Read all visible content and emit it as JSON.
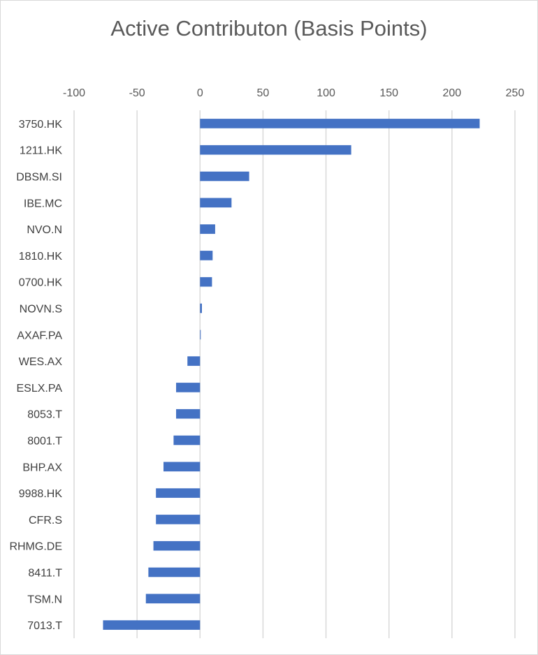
{
  "chart_data": {
    "type": "bar",
    "orientation": "horizontal",
    "title": "Active Contributon (Basis Points)",
    "xlabel": "",
    "ylabel": "",
    "xlim": [
      -100,
      250
    ],
    "x_ticks": [
      -100,
      -50,
      0,
      50,
      100,
      150,
      200,
      250
    ],
    "x_tick_labels": [
      "-100",
      "-50",
      "0",
      "50",
      "100",
      "150",
      "200",
      "250"
    ],
    "grid": true,
    "legend": "none",
    "bar_color": "#4472c4",
    "grid_color": "#d9d9d9",
    "categories": [
      "3750.HK",
      "1211.HK",
      "DBSM.SI",
      "IBE.MC",
      "NVO.N",
      "1810.HK",
      "0700.HK",
      "NOVN.S",
      "AXAF.PA",
      "WES.AX",
      "ESLX.PA",
      "8053.T",
      "8001.T",
      "BHP.AX",
      "9988.HK",
      "CFR.S",
      "RHMG.DE",
      "8411.T",
      "TSM.N",
      "7013.T"
    ],
    "values": [
      222,
      120,
      39,
      25,
      12,
      10,
      9.5,
      1.5,
      0.5,
      -10,
      -19,
      -19,
      -21,
      -29,
      -35,
      -35,
      -37,
      -41,
      -43,
      -77
    ]
  }
}
